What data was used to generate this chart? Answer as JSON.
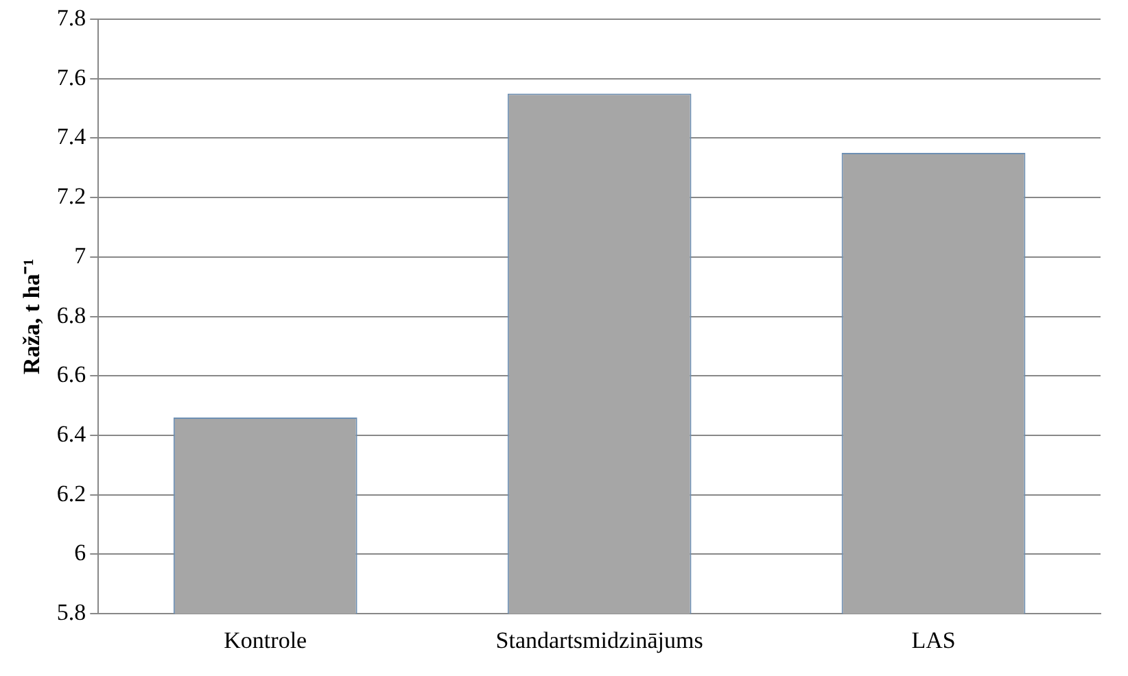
{
  "chart_data": {
    "type": "bar",
    "ylabel": "Raža, t ha⁻¹",
    "categories": [
      "Kontrole",
      "Standartsmidzinājums",
      "LAS"
    ],
    "values": [
      6.46,
      7.55,
      7.35
    ],
    "color": "#a6a6a6",
    "ylim": [
      5.8,
      7.8
    ],
    "yticks": [
      5.8,
      6,
      6.2,
      6.4,
      6.6,
      6.8,
      7,
      7.2,
      7.4,
      7.6,
      7.8
    ],
    "grid": "y",
    "legend": false
  }
}
